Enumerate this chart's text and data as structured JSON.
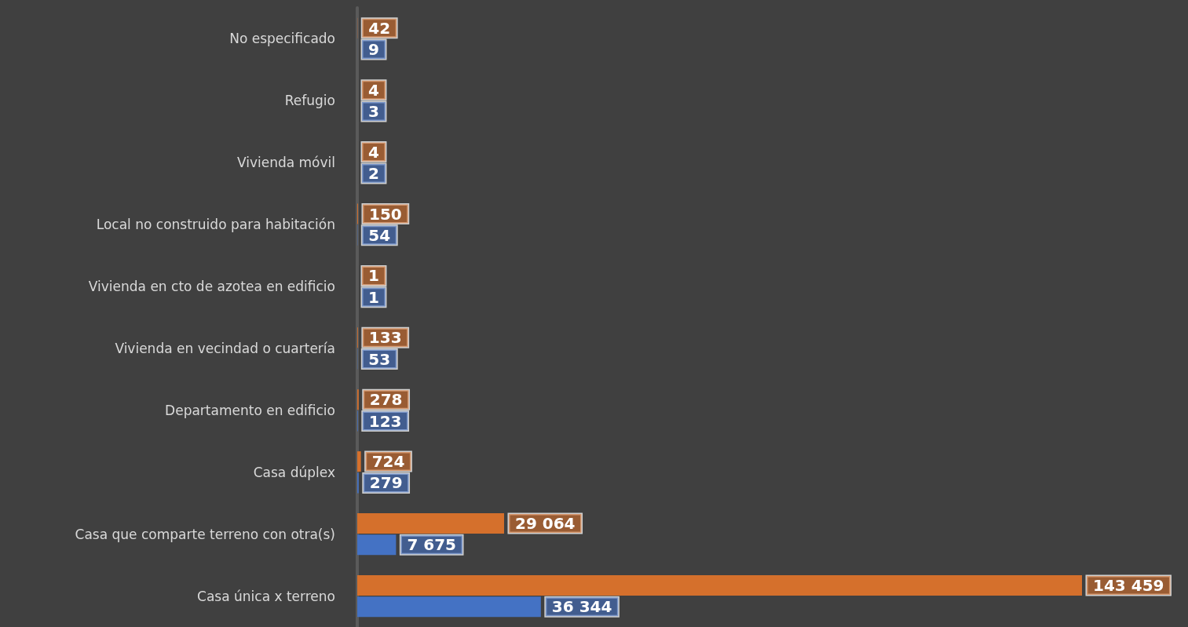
{
  "chart_data": {
    "type": "bar",
    "categories": [
      "No especificado",
      "Refugio",
      "Vivienda móvil",
      "Local no construido para habitación",
      "Vivienda en cto de azotea en edificio",
      "Vivienda en vecindad o cuartería",
      "Departamento en edificio",
      "Casa dúplex",
      "Casa que comparte terreno con otra(s)",
      "Casa única x terreno"
    ],
    "series": [
      {
        "color": "#d5702c",
        "values": [
          42,
          4,
          4,
          150,
          1,
          133,
          278,
          724,
          29064,
          143459
        ],
        "value_labels": [
          "42",
          "4",
          "4",
          "150",
          "1",
          "133",
          "278",
          "724",
          "29 064",
          "143 459"
        ]
      },
      {
        "color": "#4472c4",
        "values": [
          9,
          3,
          2,
          54,
          1,
          53,
          123,
          279,
          7675,
          36344
        ],
        "value_labels": [
          "9",
          "3",
          "2",
          "54",
          "1",
          "53",
          "123",
          "279",
          "7 675",
          "36 344"
        ]
      }
    ],
    "orientation": "horizontal"
  }
}
